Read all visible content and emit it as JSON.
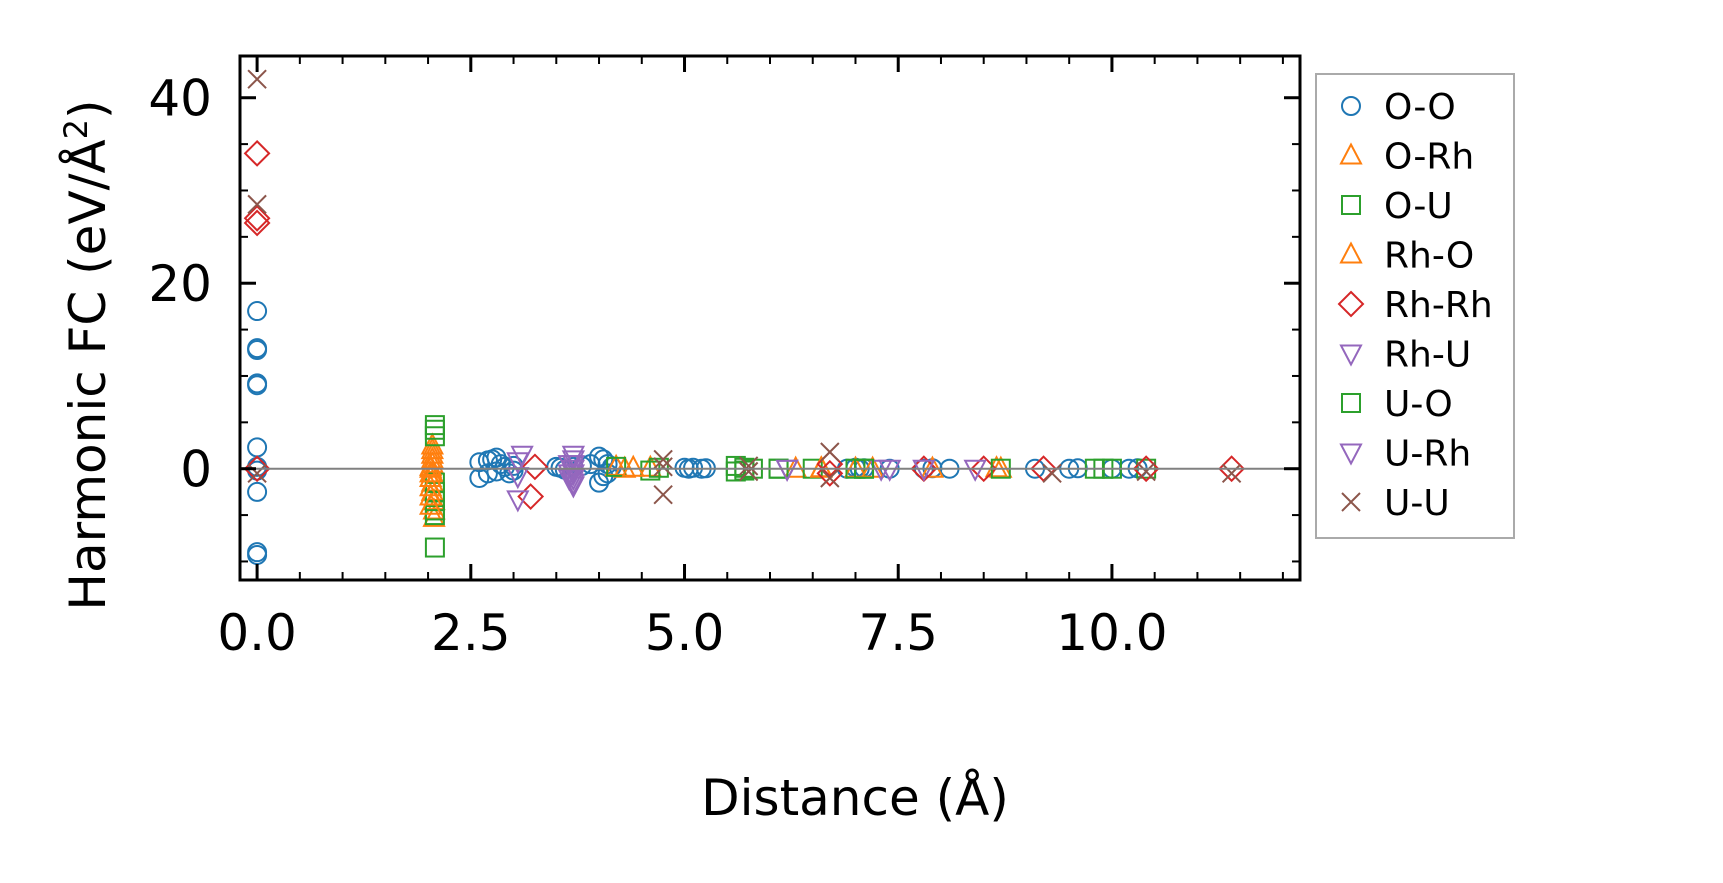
{
  "chart_data": {
    "type": "scatter",
    "title": "",
    "xlabel": "Distance (Å)",
    "ylabel_main": "Harmonic FC (eV/Å",
    "ylabel_sup": "2",
    "ylabel_end": ")",
    "xlim": [
      -0.2,
      12.2
    ],
    "ylim": [
      -12,
      44.5
    ],
    "x_ticks": [
      0,
      2.5,
      5,
      7.5,
      10
    ],
    "x_tick_labels": [
      "0.0",
      "2.5",
      "5.0",
      "7.5",
      "10.0"
    ],
    "y_ticks": [
      0,
      20,
      40
    ],
    "y_tick_labels": [
      "0",
      "20",
      "40"
    ],
    "zero_line": true,
    "grid": false,
    "legend_position": "outside-right",
    "series": [
      {
        "name": "O-O",
        "marker": "circle",
        "color": "#1f77b4",
        "x": [
          0,
          0,
          0,
          0,
          0,
          0,
          0,
          0,
          0,
          0,
          0,
          2.6,
          2.6,
          2.7,
          2.7,
          2.75,
          2.8,
          2.8,
          2.85,
          2.9,
          2.95,
          3.0,
          3.0,
          3.5,
          3.55,
          3.6,
          3.7,
          3.8,
          3.9,
          4.0,
          4.0,
          4.05,
          4.05,
          4.1,
          4.1,
          4.15,
          5.0,
          5.05,
          5.1,
          5.2,
          5.25,
          6.9,
          7.0,
          7.05,
          7.1,
          7.4,
          7.8,
          7.9,
          8.1,
          9.1,
          9.5,
          9.6,
          10.0,
          10.2,
          10.3
        ],
        "y": [
          17,
          13,
          12.8,
          9.2,
          9.0,
          2.3,
          -2.5,
          -9.0,
          -9.3,
          0.2,
          -0.2,
          0.7,
          -1.0,
          0.9,
          -0.5,
          1.0,
          1.2,
          -0.3,
          0.5,
          0.2,
          -0.5,
          0.3,
          -0.2,
          0.2,
          0.1,
          -0.1,
          0.2,
          0.3,
          0.5,
          1.3,
          -1.5,
          1.0,
          -0.8,
          0.5,
          -0.5,
          0.2,
          0.1,
          0.0,
          0.1,
          0.0,
          0.05,
          0.0,
          0.1,
          0.0,
          0.05,
          0.0,
          0.0,
          0.05,
          0.0,
          0.0,
          0.0,
          0.05,
          0.0,
          0.0,
          0.05
        ]
      },
      {
        "name": "O-Rh",
        "marker": "triangle-up",
        "color": "#ff7f0e",
        "x": [
          2.05,
          2.05,
          2.05,
          2.05,
          2.05,
          2.05,
          2.05,
          2.05,
          2.07,
          2.07,
          2.07,
          4.2,
          4.3,
          4.6,
          6.3,
          6.6,
          7.0,
          7.9,
          8.7
        ],
        "y": [
          2.5,
          2.0,
          1.5,
          1.0,
          0.5,
          -0.5,
          -1.5,
          -2.5,
          -3.5,
          -4.5,
          -5.3,
          0.2,
          0.0,
          0.1,
          0.0,
          0.05,
          0.0,
          0.0,
          0.0
        ]
      },
      {
        "name": "O-U",
        "marker": "square",
        "color": "#2ca02c",
        "x": [
          2.08,
          2.08,
          2.08,
          2.08,
          2.08,
          2.08,
          2.08,
          2.08,
          2.08,
          4.2,
          4.6,
          4.7,
          5.6,
          5.6,
          5.8,
          6.1,
          6.5,
          7.0,
          7.1,
          9.8,
          10.0,
          10.4
        ],
        "y": [
          4.7,
          4.2,
          3.5,
          -1.5,
          -2.5,
          -3.5,
          -4.5,
          -5.0,
          -8.5,
          0.2,
          -0.2,
          0.1,
          0.3,
          -0.3,
          0.0,
          0.0,
          0.0,
          0.0,
          0.0,
          0.0,
          0.0,
          0.0
        ]
      },
      {
        "name": "Rh-O",
        "marker": "triangle-up",
        "color": "#ff7f0e",
        "x": [
          2.03,
          2.03,
          2.03,
          2.03,
          2.03,
          2.03,
          2.03,
          4.4,
          6.6,
          7.2,
          8.65
        ],
        "y": [
          0.2,
          0.0,
          -0.5,
          -1.0,
          -2.0,
          -3.0,
          -4.0,
          0.1,
          0.0,
          0.0,
          0.05
        ]
      },
      {
        "name": "Rh-Rh",
        "marker": "diamond",
        "color": "#d62728",
        "x": [
          0,
          0,
          0,
          0,
          3.2,
          3.25,
          6.7,
          6.7,
          7.8,
          8.5,
          9.2,
          10.4,
          11.4
        ],
        "y": [
          34,
          27,
          26.5,
          0.0,
          -3.0,
          0.2,
          0.5,
          -0.5,
          0.0,
          0.0,
          0.0,
          0.0,
          0.0
        ]
      },
      {
        "name": "Rh-U",
        "marker": "triangle-down",
        "color": "#9467bd",
        "x": [
          3.05,
          3.1,
          3.7,
          3.7,
          3.7,
          3.7,
          3.7,
          3.7,
          3.7,
          3.7,
          6.2,
          7.3,
          7.8,
          8.4
        ],
        "y": [
          -3.3,
          1.5,
          1.5,
          1.0,
          0.5,
          0.0,
          -0.5,
          -1.0,
          -1.5,
          -1.8,
          0.0,
          0.0,
          0.0,
          0.0
        ]
      },
      {
        "name": "U-O",
        "marker": "square",
        "color": "#2ca02c",
        "x": [
          5.7,
          5.7,
          6.1,
          7.1,
          8.7,
          9.9
        ],
        "y": [
          0.1,
          -0.2,
          0.0,
          0.0,
          0.0,
          0.0
        ]
      },
      {
        "name": "U-Rh",
        "marker": "triangle-down",
        "color": "#9467bd",
        "x": [
          3.05,
          3.05,
          3.65,
          3.65,
          3.65,
          6.2,
          7.4
        ],
        "y": [
          0.8,
          -0.8,
          0.5,
          -0.5,
          -1.0,
          0.0,
          0.0
        ]
      },
      {
        "name": "U-U",
        "marker": "x",
        "color": "#8c564b",
        "x": [
          0,
          0,
          0,
          4.75,
          4.75,
          4.75,
          5.75,
          5.75,
          6.7,
          6.7,
          9.3,
          10.4,
          11.4
        ],
        "y": [
          42,
          28.5,
          -0.5,
          1.0,
          0.2,
          -2.8,
          0.3,
          -0.3,
          1.8,
          -1.0,
          -0.5,
          -0.3,
          -0.5
        ]
      }
    ]
  },
  "legend_title": ""
}
